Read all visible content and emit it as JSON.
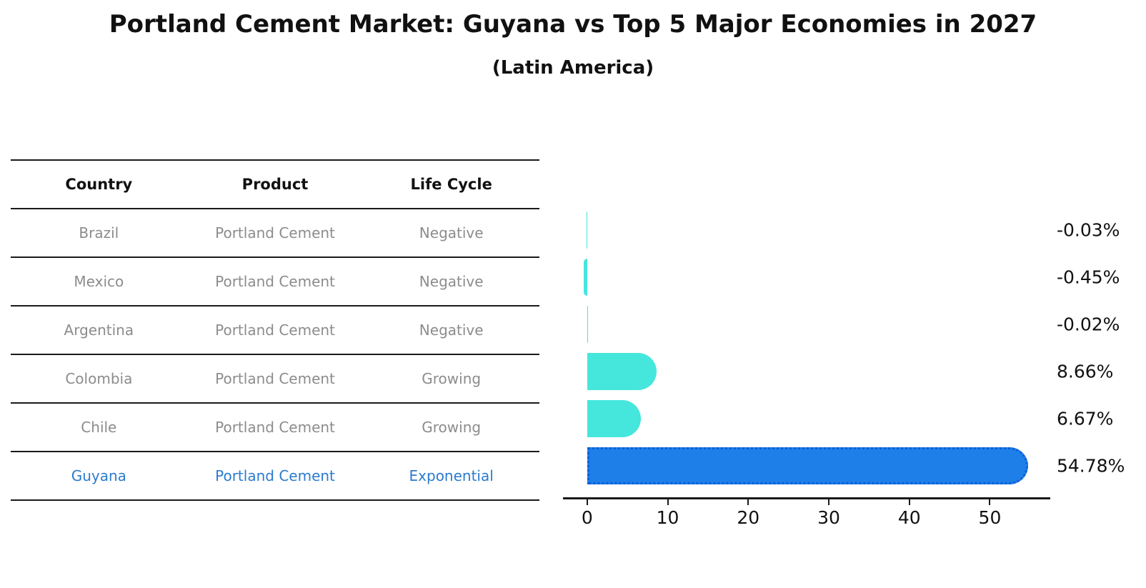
{
  "title": "Portland Cement Market: Guyana vs Top 5 Major Economies in 2027",
  "subtitle": "(Latin America)",
  "table": {
    "headers": [
      "Country",
      "Product",
      "Life Cycle"
    ],
    "rows": [
      {
        "country": "Brazil",
        "product": "Portland Cement",
        "life_cycle": "Negative"
      },
      {
        "country": "Mexico",
        "product": "Portland Cement",
        "life_cycle": "Negative"
      },
      {
        "country": "Argentina",
        "product": "Portland Cement",
        "life_cycle": "Negative"
      },
      {
        "country": "Colombia",
        "product": "Portland Cement",
        "life_cycle": "Growing"
      },
      {
        "country": "Chile",
        "product": "Portland Cement",
        "life_cycle": "Growing"
      },
      {
        "country": "Guyana",
        "product": "Portland Cement",
        "life_cycle": "Exponential"
      }
    ]
  },
  "chart_data": {
    "type": "bar",
    "orientation": "horizontal",
    "title": "",
    "xlabel": "",
    "ylabel": "",
    "categories": [
      "Brazil",
      "Mexico",
      "Argentina",
      "Colombia",
      "Chile",
      "Guyana"
    ],
    "values": [
      -0.03,
      -0.45,
      -0.02,
      8.66,
      6.67,
      54.78
    ],
    "value_labels": [
      "-0.03%",
      "-0.45%",
      "-0.02%",
      "8.66%",
      "6.67%",
      "54.78%"
    ],
    "xticks": [
      0,
      10,
      20,
      30,
      40,
      50
    ],
    "xlim": [
      -3,
      57.5
    ],
    "grid": false,
    "legend": "none",
    "highlight_index": 5,
    "colors": {
      "bar_default": "#45E6DC",
      "bar_highlight": "#1E7FE8",
      "bar_highlight_border": "#0B5ED7",
      "row_text": "#8C8C8C",
      "highlight_text": "#2B7BCE"
    }
  }
}
